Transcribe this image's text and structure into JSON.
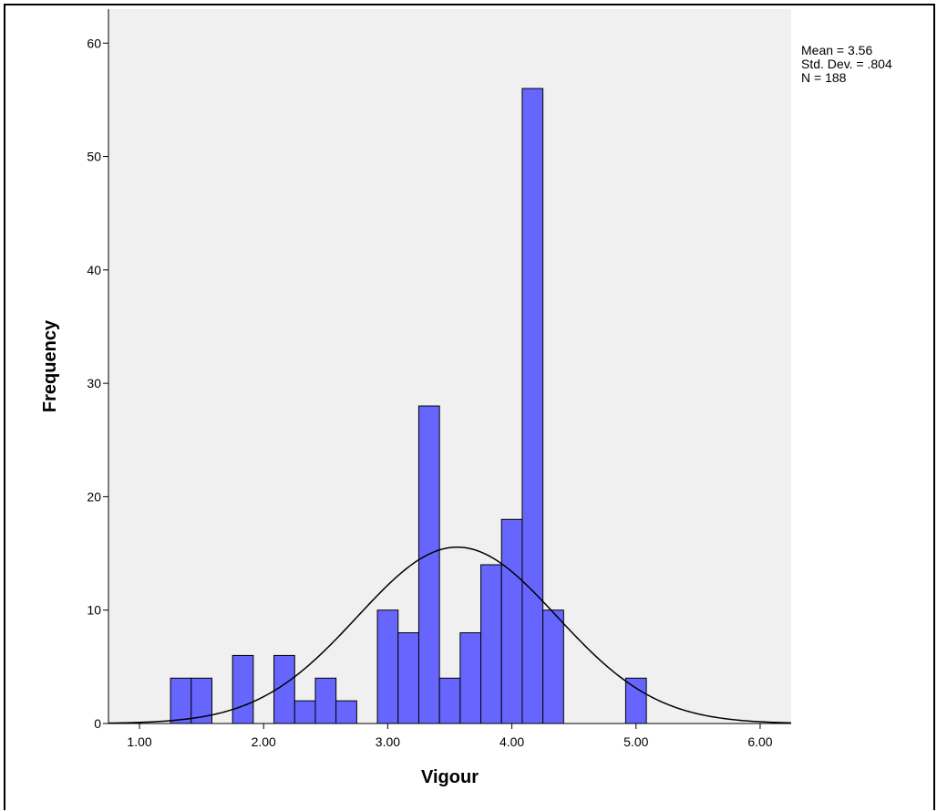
{
  "chart_data": {
    "type": "bar",
    "xlabel": "Vigour",
    "ylabel": "Frequency",
    "xlim": [
      0.75,
      6.25
    ],
    "ylim": [
      0,
      63
    ],
    "grid": false,
    "x_ticks": [
      "1.00",
      "2.00",
      "3.00",
      "4.00",
      "5.00",
      "6.00"
    ],
    "y_ticks": [
      "0",
      "10",
      "20",
      "30",
      "40",
      "50",
      "60"
    ],
    "bin_width": 0.1667,
    "bins": [
      {
        "start": 1.25,
        "value": 4
      },
      {
        "start": 1.4167,
        "value": 4
      },
      {
        "start": 1.75,
        "value": 6
      },
      {
        "start": 2.0833,
        "value": 6
      },
      {
        "start": 2.25,
        "value": 2
      },
      {
        "start": 2.4167,
        "value": 4
      },
      {
        "start": 2.5833,
        "value": 2
      },
      {
        "start": 2.9167,
        "value": 10
      },
      {
        "start": 3.0833,
        "value": 8
      },
      {
        "start": 3.25,
        "value": 28
      },
      {
        "start": 3.4167,
        "value": 4
      },
      {
        "start": 3.5833,
        "value": 8
      },
      {
        "start": 3.75,
        "value": 14
      },
      {
        "start": 3.9167,
        "value": 18
      },
      {
        "start": 4.0833,
        "value": 56
      },
      {
        "start": 4.25,
        "value": 10
      },
      {
        "start": 4.9167,
        "value": 4
      }
    ],
    "normal_curve": {
      "mean": 3.56,
      "std": 0.804,
      "n": 188
    },
    "bar_color": "#6666ff",
    "plot_background": "#f0f0f0"
  },
  "stats": {
    "mean_label": "Mean = 3.56",
    "std_label": "Std. Dev. = .804",
    "n_label": "N = 188"
  }
}
